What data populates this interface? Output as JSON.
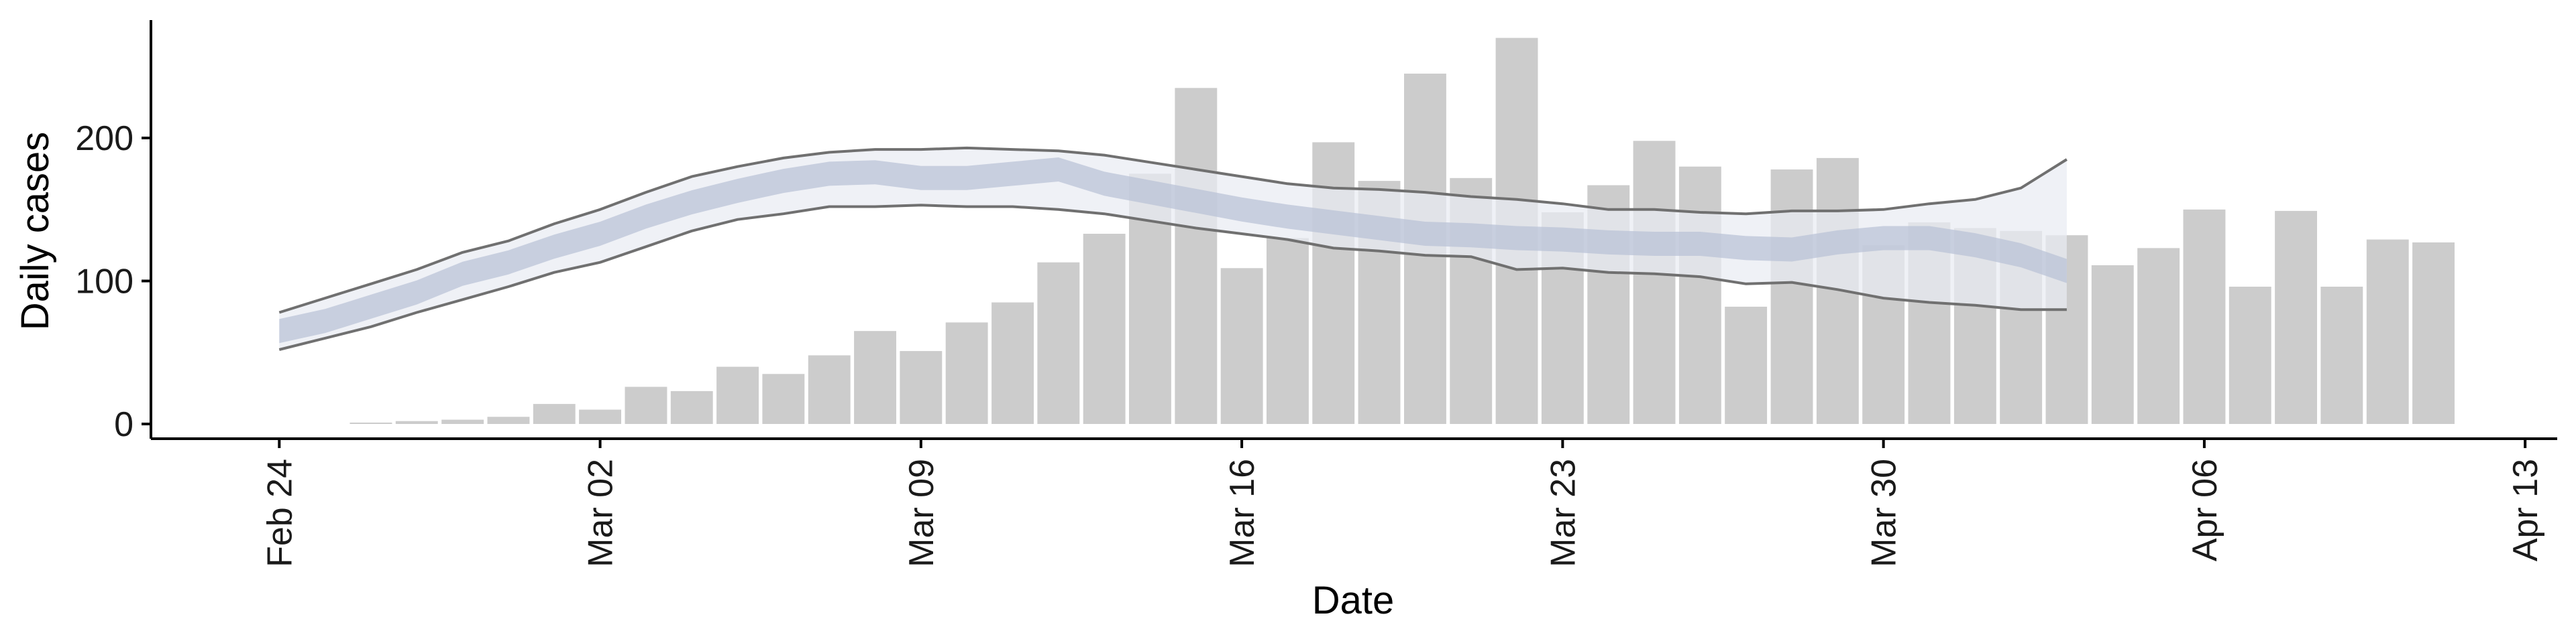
{
  "chart_data": {
    "type": "bar",
    "title": "",
    "xlabel": "Date",
    "ylabel": "Daily cases",
    "ylim": [
      0,
      280
    ],
    "y_ticks": [
      0,
      100,
      200
    ],
    "x_ticks": [
      "Feb 24",
      "Mar 02",
      "Mar 09",
      "Mar 16",
      "Mar 23",
      "Mar 30",
      "Apr 06",
      "Apr 13"
    ],
    "x_tick_days": [
      0,
      7,
      14,
      21,
      28,
      35,
      42,
      49
    ],
    "x_range_days": [
      -2.8,
      49.7
    ],
    "bars": {
      "name": "Daily cases",
      "start": "Feb 26",
      "color": "#cccccc",
      "values": [
        1,
        2,
        3,
        5,
        14,
        10,
        26,
        23,
        40,
        35,
        48,
        65,
        51,
        71,
        85,
        113,
        133,
        175,
        235,
        109,
        130,
        197,
        170,
        245,
        172,
        270,
        148,
        167,
        198,
        180,
        82,
        178,
        186,
        125,
        141,
        137,
        135,
        132,
        111,
        123,
        150,
        96,
        149,
        96,
        129,
        127
      ]
    },
    "band": {
      "start": "Feb 24",
      "fill": "#e9ebf2",
      "line_color": "#707070",
      "upper": [
        78,
        88,
        98,
        108,
        120,
        128,
        140,
        150,
        162,
        173,
        180,
        186,
        190,
        192,
        192,
        193,
        192,
        191,
        188,
        183,
        178,
        173,
        168,
        165,
        164,
        162,
        159,
        157,
        154,
        150,
        150,
        148,
        147,
        149,
        149,
        150,
        154,
        157,
        165,
        185
      ],
      "median": [
        65,
        72,
        82,
        92,
        105,
        113,
        124,
        133,
        145,
        155,
        163,
        170,
        175,
        176,
        172,
        172,
        175,
        178,
        168,
        162,
        156,
        150,
        145,
        141,
        137,
        133,
        132,
        130,
        129,
        127,
        126,
        126,
        123,
        122,
        127,
        130,
        130,
        125,
        118,
        107
      ],
      "lower": [
        52,
        60,
        68,
        78,
        87,
        96,
        106,
        113,
        124,
        135,
        143,
        147,
        152,
        152,
        153,
        152,
        152,
        150,
        147,
        142,
        137,
        133,
        129,
        123,
        121,
        118,
        117,
        108,
        109,
        106,
        105,
        103,
        98,
        99,
        94,
        88,
        85,
        83,
        80,
        80
      ]
    }
  }
}
